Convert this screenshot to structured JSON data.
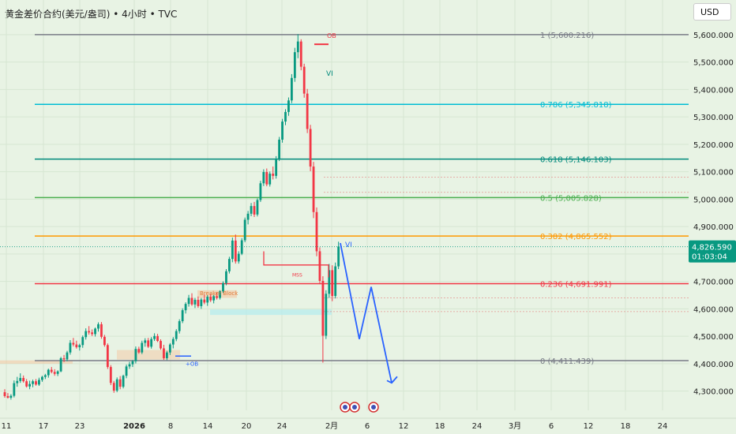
{
  "header": {
    "title": "黄金差价合约(美元/盎司) • 4小时 • TVC",
    "currency": "USD"
  },
  "colors": {
    "background": "#e8f3e4",
    "up": "#089981",
    "down": "#f23645",
    "fib_1": "#787b86",
    "fib_786": "#00bcd4",
    "fib_618": "#00897b",
    "fib_5": "#4caf50",
    "fib_382": "#ff9800",
    "fib_236": "#f23645",
    "fib_0": "#787b86",
    "projection": "#2962ff",
    "price_badge": "#089981"
  },
  "chart_data": {
    "type": "candlestick",
    "ylim": [
      4230,
      5640
    ],
    "y_ticks": [
      {
        "value": 4300,
        "label": "4,300.000"
      },
      {
        "value": 4400,
        "label": "4,400.000"
      },
      {
        "value": 4500,
        "label": "4,500.000"
      },
      {
        "value": 4600,
        "label": "4,600.000"
      },
      {
        "value": 4700,
        "label": "4,700.000"
      },
      {
        "value": 4800,
        "label": "4,800.000"
      },
      {
        "value": 4900,
        "label": "4,900.000"
      },
      {
        "value": 5000,
        "label": "5,000.000"
      },
      {
        "value": 5100,
        "label": "5,100.000"
      },
      {
        "value": 5200,
        "label": "5,200.000"
      },
      {
        "value": 5300,
        "label": "5,300.000"
      },
      {
        "value": 5400,
        "label": "5,400.000"
      },
      {
        "value": 5500,
        "label": "5,500.000"
      },
      {
        "value": 5600,
        "label": "5,600.000"
      }
    ],
    "x_ticks": [
      "11",
      "17",
      "23",
      "2026",
      "8",
      "14",
      "20",
      "24",
      "2月",
      "6",
      "12",
      "18",
      "24",
      "3月",
      "6",
      "12",
      "18",
      "24"
    ],
    "current_price": {
      "value": 4826.59,
      "label": "4,826.590",
      "countdown": "01:03:04"
    },
    "fib_levels": [
      {
        "ratio": "1",
        "value": 5600.216,
        "label": "1 (5,600.216)",
        "color": "#787b86"
      },
      {
        "ratio": "0.786",
        "value": 5345.818,
        "label": "0.786 (5,345.818)",
        "color": "#00bcd4"
      },
      {
        "ratio": "0.618",
        "value": 5146.103,
        "label": "0.618 (5,146.103)",
        "color": "#00897b"
      },
      {
        "ratio": "0.5",
        "value": 5005.828,
        "label": "0.5 (5,005.828)",
        "color": "#4caf50"
      },
      {
        "ratio": "0.382",
        "value": 4865.552,
        "label": "0.382 (4,865.552)",
        "color": "#ff9800"
      },
      {
        "ratio": "0.236",
        "value": 4691.991,
        "label": "0.236 (4,691.991)",
        "color": "#f23645"
      },
      {
        "ratio": "0",
        "value": 4411.439,
        "label": "0 (4,411.439)",
        "color": "#787b86"
      }
    ],
    "annotations": [
      "OB",
      "VI",
      "VI",
      "MSS",
      "+OB",
      "Breaker Block"
    ],
    "projection_path": [
      {
        "t": 431,
        "v": 4840
      },
      {
        "t": 455,
        "v": 4490
      },
      {
        "t": 470,
        "v": 4680
      },
      {
        "t": 496,
        "v": 4330
      }
    ],
    "candles": [
      [
        4296,
        4307,
        4276,
        4282
      ],
      [
        4282,
        4293,
        4273,
        4276
      ],
      [
        4276,
        4289,
        4269,
        4283
      ],
      [
        4283,
        4339,
        4277,
        4329
      ],
      [
        4329,
        4352,
        4316,
        4337
      ],
      [
        4337,
        4365,
        4330,
        4348
      ],
      [
        4348,
        4357,
        4331,
        4336
      ],
      [
        4336,
        4344,
        4313,
        4317
      ],
      [
        4317,
        4338,
        4307,
        4326
      ],
      [
        4326,
        4342,
        4314,
        4336
      ],
      [
        4336,
        4344,
        4320,
        4324
      ],
      [
        4324,
        4349,
        4319,
        4341
      ],
      [
        4341,
        4356,
        4334,
        4352
      ],
      [
        4352,
        4363,
        4344,
        4358
      ],
      [
        4358,
        4382,
        4349,
        4378
      ],
      [
        4378,
        4388,
        4365,
        4370
      ],
      [
        4370,
        4380,
        4356,
        4363
      ],
      [
        4363,
        4376,
        4355,
        4372
      ],
      [
        4372,
        4425,
        4369,
        4420
      ],
      [
        4420,
        4432,
        4406,
        4416
      ],
      [
        4416,
        4447,
        4409,
        4441
      ],
      [
        4441,
        4486,
        4433,
        4476
      ],
      [
        4476,
        4494,
        4463,
        4470
      ],
      [
        4470,
        4484,
        4455,
        4460
      ],
      [
        4460,
        4473,
        4448,
        4468
      ],
      [
        4468,
        4503,
        4458,
        4497
      ],
      [
        4497,
        4529,
        4488,
        4519
      ],
      [
        4519,
        4537,
        4506,
        4514
      ],
      [
        4514,
        4525,
        4501,
        4508
      ],
      [
        4508,
        4532,
        4499,
        4528
      ],
      [
        4528,
        4551,
        4517,
        4544
      ],
      [
        4544,
        4552,
        4491,
        4498
      ],
      [
        4498,
        4505,
        4462,
        4468
      ],
      [
        4468,
        4474,
        4381,
        4388
      ],
      [
        4388,
        4395,
        4322,
        4330
      ],
      [
        4330,
        4337,
        4294,
        4302
      ],
      [
        4302,
        4350,
        4296,
        4343
      ],
      [
        4343,
        4355,
        4307,
        4316
      ],
      [
        4316,
        4360,
        4310,
        4356
      ],
      [
        4356,
        4397,
        4347,
        4390
      ],
      [
        4390,
        4407,
        4381,
        4398
      ],
      [
        4398,
        4414,
        4388,
        4409
      ],
      [
        4409,
        4463,
        4401,
        4454
      ],
      [
        4454,
        4462,
        4436,
        4441
      ],
      [
        4441,
        4484,
        4435,
        4476
      ],
      [
        4476,
        4493,
        4462,
        4485
      ],
      [
        4485,
        4494,
        4457,
        4462
      ],
      [
        4462,
        4497,
        4455,
        4490
      ],
      [
        4490,
        4511,
        4483,
        4501
      ],
      [
        4501,
        4509,
        4479,
        4483
      ],
      [
        4483,
        4489,
        4451,
        4456
      ],
      [
        4456,
        4469,
        4414,
        4420
      ],
      [
        4420,
        4447,
        4413,
        4441
      ],
      [
        4441,
        4475,
        4432,
        4470
      ],
      [
        4470,
        4497,
        4456,
        4490
      ],
      [
        4490,
        4526,
        4482,
        4519
      ],
      [
        4519,
        4562,
        4510,
        4555
      ],
      [
        4555,
        4602,
        4548,
        4595
      ],
      [
        4595,
        4624,
        4583,
        4618
      ],
      [
        4618,
        4651,
        4608,
        4640
      ],
      [
        4640,
        4657,
        4611,
        4616
      ],
      [
        4616,
        4640,
        4603,
        4633
      ],
      [
        4633,
        4645,
        4604,
        4610
      ],
      [
        4610,
        4640,
        4600,
        4634
      ],
      [
        4634,
        4652,
        4617,
        4623
      ],
      [
        4623,
        4650,
        4611,
        4644
      ],
      [
        4644,
        4655,
        4625,
        4631
      ],
      [
        4631,
        4651,
        4620,
        4646
      ],
      [
        4646,
        4660,
        4634,
        4640
      ],
      [
        4640,
        4668,
        4634,
        4664
      ],
      [
        4664,
        4700,
        4658,
        4694
      ],
      [
        4694,
        4745,
        4686,
        4737
      ],
      [
        4737,
        4790,
        4729,
        4782
      ],
      [
        4782,
        4860,
        4770,
        4849
      ],
      [
        4849,
        4871,
        4765,
        4773
      ],
      [
        4773,
        4810,
        4765,
        4801
      ],
      [
        4801,
        4858,
        4796,
        4850
      ],
      [
        4850,
        4933,
        4843,
        4925
      ],
      [
        4925,
        4957,
        4908,
        4947
      ],
      [
        4947,
        4986,
        4938,
        4975
      ],
      [
        4975,
        4990,
        4935,
        4944
      ],
      [
        4944,
        5003,
        4937,
        4997
      ],
      [
        4997,
        5067,
        4990,
        5058
      ],
      [
        5058,
        5109,
        5048,
        5099
      ],
      [
        5099,
        5112,
        5047,
        5054
      ],
      [
        5054,
        5101,
        5046,
        5093
      ],
      [
        5093,
        5119,
        5072,
        5085
      ],
      [
        5085,
        5157,
        5075,
        5148
      ],
      [
        5148,
        5227,
        5139,
        5217
      ],
      [
        5217,
        5293,
        5206,
        5283
      ],
      [
        5283,
        5328,
        5270,
        5318
      ],
      [
        5318,
        5371,
        5304,
        5360
      ],
      [
        5360,
        5456,
        5350,
        5442
      ],
      [
        5442,
        5552,
        5428,
        5536
      ],
      [
        5536,
        5602,
        5514,
        5575
      ],
      [
        5575,
        5583,
        5470,
        5483
      ],
      [
        5483,
        5494,
        5370,
        5385
      ],
      [
        5385,
        5402,
        5241,
        5256
      ],
      [
        5256,
        5271,
        5102,
        5119
      ],
      [
        5119,
        5136,
        4931,
        4953
      ],
      [
        4953,
        4970,
        4792,
        4810
      ],
      [
        4810,
        4824,
        4690,
        4702
      ],
      [
        4702,
        4719,
        4404,
        4502
      ],
      [
        4502,
        4668,
        4490,
        4655
      ],
      [
        4655,
        4764,
        4640,
        4741
      ],
      [
        4741,
        4759,
        4628,
        4647
      ],
      [
        4647,
        4769,
        4638,
        4755
      ],
      [
        4755,
        4845,
        4745,
        4827
      ]
    ]
  }
}
